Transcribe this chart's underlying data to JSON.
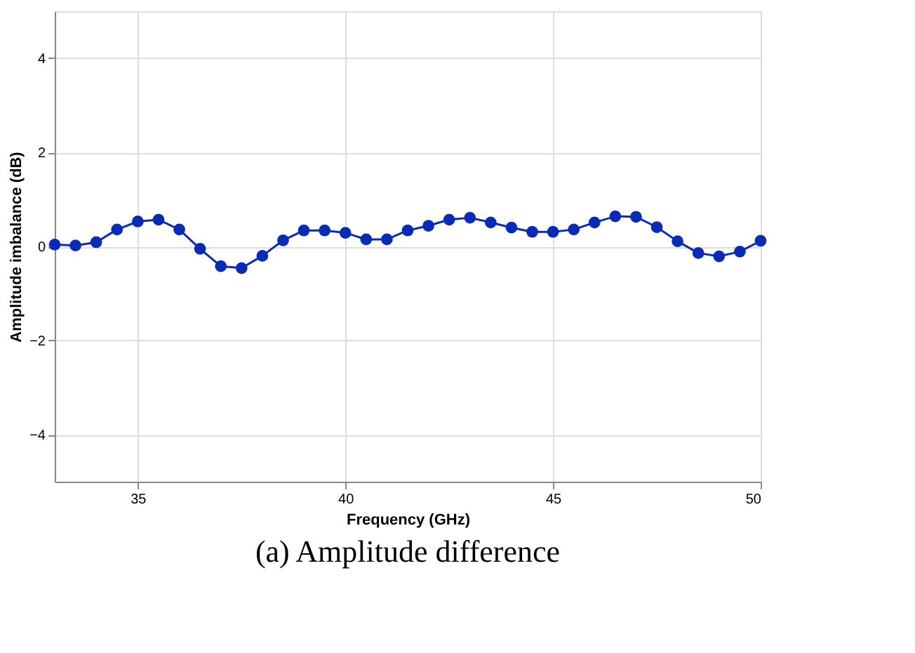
{
  "chart_data": {
    "type": "line",
    "title": "(a) Amplitude difference",
    "xlabel": "Frequency (GHz)",
    "ylabel": "Amplitude imbalance (dB)",
    "x": [
      33,
      33.5,
      34,
      34.5,
      35,
      35.5,
      36,
      36.5,
      37,
      37.5,
      38,
      38.5,
      39,
      39.5,
      40,
      40.5,
      41,
      41.5,
      42,
      42.5,
      43,
      43.5,
      44,
      44.5,
      45,
      45.5,
      46,
      46.5,
      47,
      47.5,
      48,
      48.5,
      49,
      49.5,
      50
    ],
    "series": [
      {
        "color": "#0a2bb5",
        "values": [
          0.04,
          0.02,
          0.09,
          0.36,
          0.53,
          0.57,
          0.36,
          -0.05,
          -0.42,
          -0.46,
          -0.2,
          0.13,
          0.34,
          0.34,
          0.29,
          0.15,
          0.15,
          0.34,
          0.44,
          0.57,
          0.61,
          0.51,
          0.4,
          0.31,
          0.31,
          0.36,
          0.51,
          0.64,
          0.63,
          0.41,
          0.11,
          -0.14,
          -0.21,
          -0.11,
          0.12
        ]
      }
    ],
    "xlim": [
      33,
      50
    ],
    "ylim": [
      -5,
      5
    ],
    "xticks": [
      35,
      40,
      45,
      50
    ],
    "yticks": [
      -4,
      -2,
      0,
      2,
      4
    ],
    "grid": true,
    "marker": "circle",
    "line_style": "solid"
  }
}
